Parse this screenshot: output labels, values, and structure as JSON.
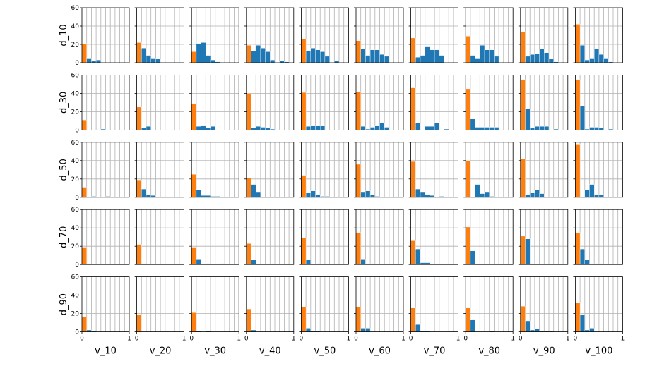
{
  "chart_data": {
    "type": "bar",
    "layout": "small-multiples-histogram-grid",
    "grid": true,
    "xlim": [
      0,
      1
    ],
    "ylim": [
      0,
      60
    ],
    "xticks": [
      "0",
      "1"
    ],
    "yticks": [
      "0",
      "20",
      "40",
      "60"
    ],
    "rows": [
      "d_10",
      "d_30",
      "d_50",
      "d_70",
      "d_90"
    ],
    "cols": [
      "v_10",
      "v_20",
      "v_30",
      "v_40",
      "v_50",
      "v_60",
      "v_70",
      "v_80",
      "v_90",
      "v_100"
    ],
    "bin_width": 0.1,
    "series_colors": {
      "first_bin": "#ff7f0e",
      "other_bins": "#1f77b4"
    },
    "counts": [
      [
        [
          21,
          5,
          2,
          3,
          0,
          0,
          0,
          0,
          0,
          0
        ],
        [
          22,
          16,
          8,
          5,
          4,
          0,
          0,
          0,
          0,
          0
        ],
        [
          12,
          21,
          22,
          8,
          3,
          1,
          0,
          0,
          0,
          0
        ],
        [
          19,
          13,
          19,
          16,
          12,
          3,
          0,
          2,
          1,
          0
        ],
        [
          26,
          13,
          16,
          14,
          12,
          7,
          0,
          2,
          0,
          0
        ],
        [
          24,
          15,
          8,
          14,
          14,
          9,
          7,
          0,
          0,
          0
        ],
        [
          27,
          6,
          8,
          18,
          14,
          14,
          8,
          0,
          0,
          0
        ],
        [
          29,
          8,
          5,
          19,
          14,
          14,
          7,
          0,
          0,
          0
        ],
        [
          34,
          7,
          9,
          10,
          15,
          11,
          4,
          1,
          0,
          0
        ],
        [
          42,
          19,
          3,
          5,
          15,
          9,
          5,
          1,
          0,
          0
        ]
      ],
      [
        [
          11,
          0,
          0,
          0,
          1,
          0,
          0,
          0,
          0,
          0
        ],
        [
          25,
          2,
          4,
          0,
          0,
          0,
          0,
          0,
          0,
          0
        ],
        [
          29,
          4,
          5,
          2,
          4,
          0,
          0,
          0,
          0,
          0
        ],
        [
          40,
          2,
          4,
          3,
          2,
          1,
          0,
          0,
          0,
          0
        ],
        [
          41,
          4,
          5,
          5,
          5,
          0,
          0,
          0,
          0,
          0
        ],
        [
          42,
          4,
          1,
          3,
          5,
          8,
          3,
          0,
          0,
          0
        ],
        [
          46,
          8,
          0,
          4,
          4,
          8,
          0,
          1,
          0,
          0
        ],
        [
          45,
          12,
          3,
          3,
          3,
          3,
          3,
          0,
          0,
          0
        ],
        [
          55,
          23,
          2,
          4,
          4,
          4,
          0,
          1,
          0,
          0
        ],
        [
          55,
          26,
          1,
          3,
          3,
          2,
          0,
          1,
          0,
          0
        ]
      ],
      [
        [
          11,
          0,
          1,
          0,
          0,
          1,
          0,
          0,
          0,
          0
        ],
        [
          19,
          9,
          3,
          2,
          0,
          0,
          0,
          0,
          0,
          0
        ],
        [
          25,
          8,
          2,
          2,
          1,
          1,
          0,
          0,
          0,
          0
        ],
        [
          21,
          14,
          6,
          0,
          0,
          0,
          0,
          0,
          0,
          0
        ],
        [
          24,
          5,
          7,
          3,
          1,
          1,
          0,
          0,
          0,
          0
        ],
        [
          36,
          6,
          7,
          3,
          1,
          0,
          0,
          0,
          0,
          0
        ],
        [
          39,
          9,
          6,
          3,
          2,
          0,
          1,
          0,
          0,
          0
        ],
        [
          40,
          0,
          14,
          4,
          6,
          1,
          0,
          0,
          0,
          0
        ],
        [
          42,
          3,
          5,
          8,
          4,
          0,
          0,
          0,
          0,
          0
        ],
        [
          58,
          0,
          8,
          14,
          3,
          3,
          0,
          0,
          0,
          0
        ]
      ],
      [
        [
          19,
          1,
          0,
          0,
          0,
          0,
          0,
          0,
          0,
          0
        ],
        [
          22,
          1,
          0,
          0,
          0,
          0,
          0,
          0,
          0,
          0
        ],
        [
          19,
          6,
          0,
          1,
          0,
          0,
          1,
          0,
          0,
          0
        ],
        [
          23,
          5,
          0,
          0,
          0,
          1,
          0,
          0,
          0,
          0
        ],
        [
          29,
          5,
          0,
          1,
          0,
          0,
          0,
          0,
          0,
          0
        ],
        [
          35,
          6,
          1,
          1,
          0,
          0,
          0,
          0,
          0,
          0
        ],
        [
          26,
          17,
          2,
          2,
          0,
          0,
          0,
          0,
          0,
          0
        ],
        [
          41,
          15,
          0,
          0,
          0,
          0,
          0,
          0,
          0,
          0
        ],
        [
          31,
          28,
          1,
          0,
          0,
          0,
          0,
          0,
          0,
          0
        ],
        [
          35,
          17,
          5,
          1,
          1,
          1,
          0,
          0,
          0,
          0
        ]
      ],
      [
        [
          16,
          2,
          1,
          0,
          0,
          0,
          0,
          0,
          0,
          0
        ],
        [
          19,
          0,
          0,
          0,
          0,
          0,
          0,
          0,
          0,
          0
        ],
        [
          21,
          1,
          0,
          1,
          0,
          0,
          0,
          0,
          0,
          0
        ],
        [
          25,
          2,
          0,
          0,
          0,
          0,
          0,
          0,
          0,
          0
        ],
        [
          27,
          4,
          1,
          1,
          0,
          0,
          0,
          0,
          0,
          0
        ],
        [
          27,
          4,
          4,
          0,
          0,
          0,
          0,
          0,
          0,
          0
        ],
        [
          26,
          8,
          1,
          1,
          0,
          0,
          0,
          0,
          0,
          0
        ],
        [
          26,
          13,
          0,
          0,
          0,
          1,
          0,
          0,
          0,
          0
        ],
        [
          28,
          12,
          2,
          3,
          1,
          1,
          1,
          0,
          0,
          0
        ],
        [
          32,
          19,
          2,
          4,
          0,
          0,
          0,
          0,
          0,
          0
        ]
      ]
    ]
  }
}
